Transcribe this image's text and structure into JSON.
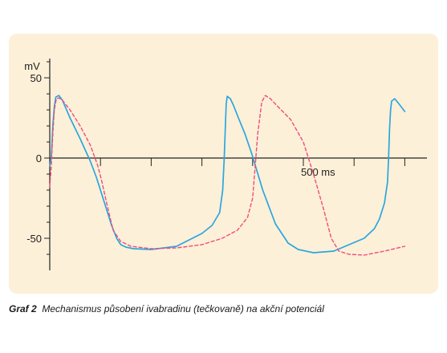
{
  "caption": {
    "label": "Graf 2",
    "text": "Mechanismus působení ivabradinu (tečkovaně) na akční potenciál"
  },
  "colors": {
    "panel": "#fdf0d8",
    "axis": "#222222",
    "series_solid": "#2aa6df",
    "series_dotted": "#ee4d7c"
  },
  "chart_data": {
    "type": "line",
    "title": "",
    "xlabel": "",
    "ylabel": "mV",
    "xlim": [
      0,
      750
    ],
    "ylim": [
      -70,
      62
    ],
    "grid": false,
    "y_ticks": [
      50,
      0,
      -50
    ],
    "y_tick_labels": [
      "50",
      "0",
      "-50"
    ],
    "x_ticks": [
      0,
      100,
      200,
      300,
      400,
      500,
      600,
      700
    ],
    "x_annotation": {
      "x": 500,
      "label": "500 ms"
    },
    "series": [
      {
        "style": "solid",
        "x": [
          0,
          3,
          6,
          9,
          12,
          18,
          25,
          40,
          60,
          80,
          92,
          100,
          110,
          122,
          132,
          140,
          150,
          165,
          200,
          250,
          300,
          320,
          335,
          341,
          344,
          346,
          348,
          350,
          356,
          362,
          372,
          385,
          398,
          420,
          445,
          470,
          490,
          520,
          560,
          620,
          640,
          650,
          660,
          666,
          668,
          670,
          672,
          674,
          680,
          688,
          700
        ],
        "y": [
          -5,
          0,
          20,
          32,
          38,
          39,
          36,
          25,
          12,
          -2,
          -12,
          -20,
          -30,
          -42,
          -50,
          -54,
          -55.5,
          -56.5,
          -57,
          -55,
          -47,
          -42,
          -34,
          -20,
          0,
          18,
          34,
          38.5,
          37,
          33,
          25,
          15,
          3,
          -20,
          -41,
          -53,
          -57,
          -59,
          -58,
          -50,
          -44,
          -38,
          -28,
          -15,
          0,
          18,
          30,
          35.5,
          37,
          34,
          29
        ]
      },
      {
        "style": "dotted",
        "x": [
          0,
          3,
          6,
          9,
          13,
          18,
          25,
          40,
          60,
          80,
          95,
          103,
          110,
          118,
          125,
          140,
          160,
          200,
          250,
          300,
          340,
          370,
          390,
          400,
          405,
          410,
          418,
          425,
          435,
          450,
          475,
          500,
          520,
          540,
          555,
          570,
          590,
          620,
          660,
          700
        ],
        "y": [
          -18,
          -5,
          15,
          30,
          37,
          37.5,
          36,
          30,
          20,
          8,
          -5,
          -15,
          -25,
          -36,
          -45,
          -52,
          -55,
          -56.5,
          -56,
          -54,
          -50,
          -45,
          -37,
          -25,
          -5,
          15,
          35,
          39,
          37,
          32,
          24,
          10,
          -10,
          -32,
          -50,
          -58,
          -60,
          -60.5,
          -58,
          -55
        ]
      }
    ]
  }
}
